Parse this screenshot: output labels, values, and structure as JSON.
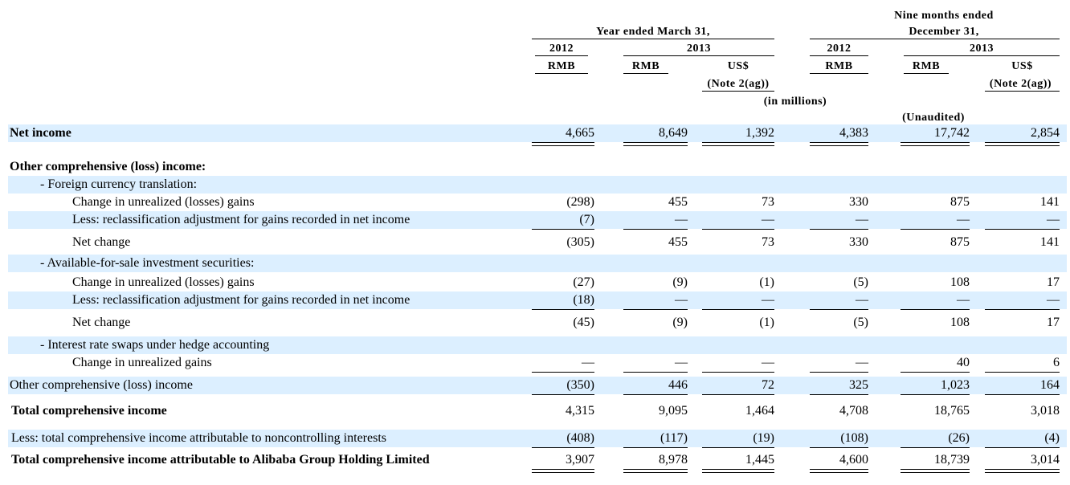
{
  "header": {
    "group_year": "Year ended March 31,",
    "group_nine_line1": "Nine months ended",
    "group_nine_line2": "December 31,",
    "year_2012a": "2012",
    "year_2013a": "2013",
    "year_2012b": "2012",
    "year_2013b": "2013",
    "cur_rmb1": "RMB",
    "cur_rmb2": "RMB",
    "cur_usd1": "US$",
    "cur_rmb3": "RMB",
    "cur_rmb4": "RMB",
    "cur_usd2": "US$",
    "note1": "(Note 2(ag))",
    "note2": "(Note 2(ag))",
    "in_millions": "(in millions)",
    "unaudited": "(Unaudited)"
  },
  "rows": [
    {
      "label": "Net income",
      "values": [
        "4,665",
        "8,649",
        "1,392",
        "4,383",
        "17,742",
        "2,854"
      ]
    },
    {
      "label": "Other comprehensive (loss) income:",
      "values": [
        "",
        "",
        "",
        "",
        "",
        ""
      ]
    },
    {
      "label": "- Foreign currency translation:",
      "values": [
        "",
        "",
        "",
        "",
        "",
        ""
      ]
    },
    {
      "label": "Change in unrealized (losses) gains",
      "values": [
        "(298)",
        "455",
        "73",
        "330",
        "875",
        "141"
      ]
    },
    {
      "label": "Less: reclassification adjustment for gains recorded in net income",
      "values": [
        "(7)",
        "—",
        "—",
        "—",
        "—",
        "—"
      ]
    },
    {
      "label": "Net change",
      "values": [
        "(305)",
        "455",
        "73",
        "330",
        "875",
        "141"
      ]
    },
    {
      "label": "- Available-for-sale investment securities:",
      "values": [
        "",
        "",
        "",
        "",
        "",
        ""
      ]
    },
    {
      "label": "Change in unrealized (losses) gains",
      "values": [
        "(27)",
        "(9)",
        "(1)",
        "(5)",
        "108",
        "17"
      ]
    },
    {
      "label": "Less: reclassification adjustment for gains recorded in net income",
      "values": [
        "(18)",
        "—",
        "—",
        "—",
        "—",
        "—"
      ]
    },
    {
      "label": "Net change",
      "values": [
        "(45)",
        "(9)",
        "(1)",
        "(5)",
        "108",
        "17"
      ]
    },
    {
      "label": "- Interest rate swaps under hedge accounting",
      "values": [
        "",
        "",
        "",
        "",
        "",
        ""
      ]
    },
    {
      "label": "Change in unrealized gains",
      "values": [
        "—",
        "—",
        "—",
        "—",
        "40",
        "6"
      ]
    },
    {
      "label": "Other comprehensive (loss) income",
      "values": [
        "(350)",
        "446",
        "72",
        "325",
        "1,023",
        "164"
      ]
    },
    {
      "label": "Total comprehensive income",
      "values": [
        "4,315",
        "9,095",
        "1,464",
        "4,708",
        "18,765",
        "3,018"
      ]
    },
    {
      "label": "Less: total comprehensive income attributable to noncontrolling interests",
      "values": [
        "(408)",
        "(117)",
        "(19)",
        "(108)",
        "(26)",
        "(4)"
      ]
    },
    {
      "label": "Total comprehensive income attributable to Alibaba Group Holding Limited",
      "values": [
        "3,907",
        "8,978",
        "1,445",
        "4,600",
        "18,739",
        "3,014"
      ]
    }
  ]
}
